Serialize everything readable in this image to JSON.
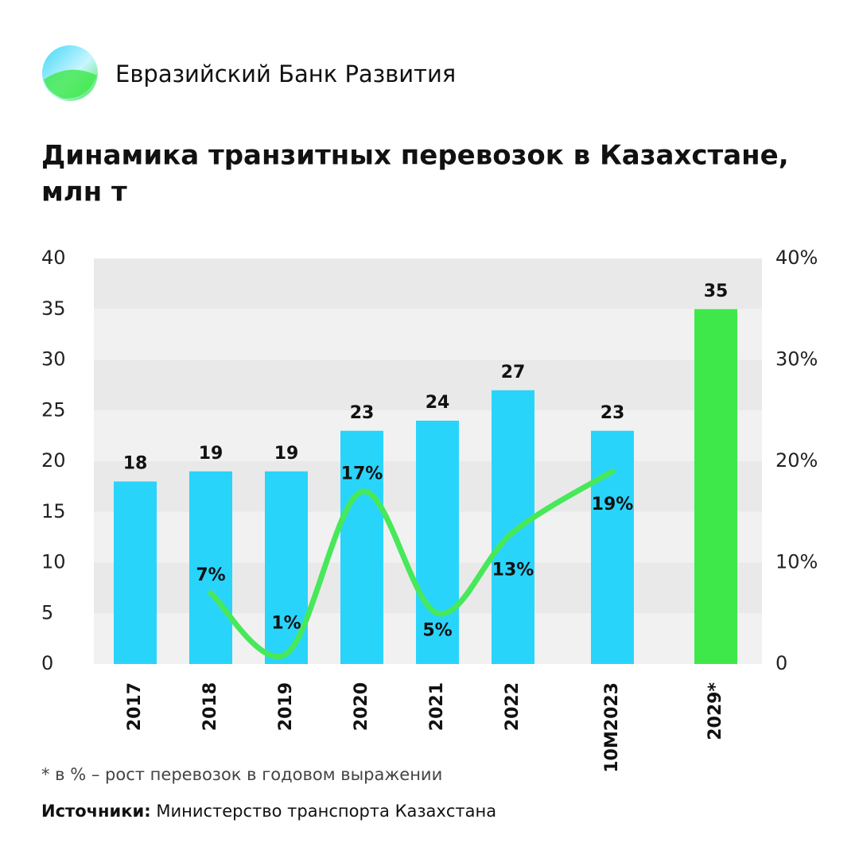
{
  "header": {
    "brand": "Евразийский Банк Развития"
  },
  "chart_data": {
    "type": "bar_line",
    "title": [
      "Динамика транзитных перевозок в Казахстане,",
      "млн т"
    ],
    "categories": [
      "2017",
      "2018",
      "2019",
      "2020",
      "2021",
      "2022",
      "10M2023",
      "2029*"
    ],
    "series": [
      {
        "type": "bar",
        "colors": [
          "#29d4fb",
          "#29d4fb",
          "#29d4fb",
          "#29d4fb",
          "#29d4fb",
          "#29d4fb",
          "#29d4fb",
          "#3ee84a"
        ],
        "values": [
          18,
          19,
          19,
          23,
          24,
          27,
          23,
          35
        ]
      },
      {
        "type": "line",
        "axis": "y2",
        "color": "#47e85a",
        "values": [
          null,
          7,
          1,
          17,
          5,
          13,
          19,
          null
        ],
        "value_labels": [
          null,
          "7%",
          "1%",
          "17%",
          "5%",
          "13%",
          "19%",
          null
        ]
      }
    ],
    "ylim": [
      0,
      40
    ],
    "yticks": [
      0,
      5,
      10,
      15,
      20,
      25,
      30,
      35,
      40
    ],
    "y2lim": [
      0,
      40
    ],
    "y2ticks": [
      0,
      {
        "value": 10,
        "label": "10%"
      },
      {
        "value": 20,
        "label": "20%"
      },
      {
        "value": 30,
        "label": "30%"
      },
      {
        "value": 40,
        "label": "40%"
      }
    ],
    "footnote": "* в % – рост перевозок в годовом выражении",
    "source_label": "Источники:",
    "source": "Министерство транспорта Казахстана"
  }
}
